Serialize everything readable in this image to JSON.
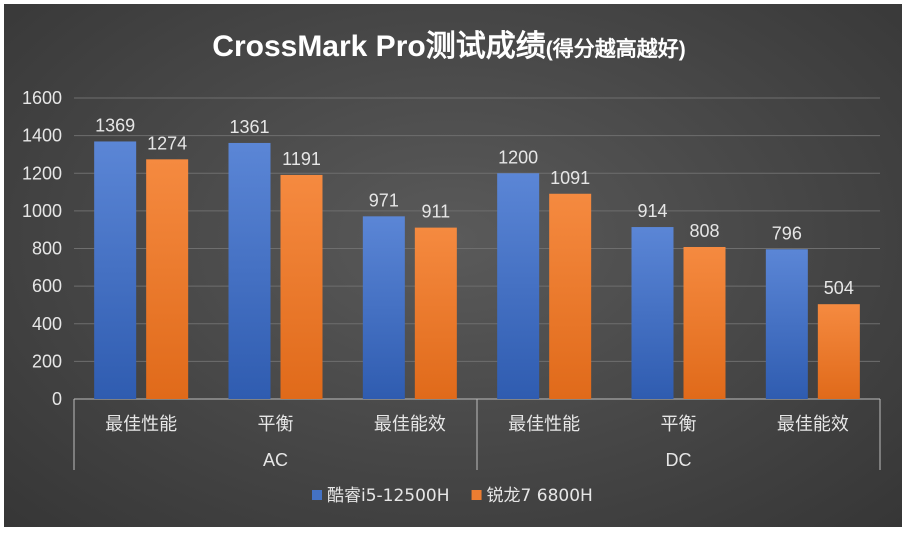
{
  "chart_data": {
    "type": "bar",
    "title": "CrossMark Pro测试成绩",
    "subtitle": "(得分越高越好)",
    "xlabel": "",
    "ylabel": "",
    "ylim": [
      0,
      1600
    ],
    "yticks": [
      0,
      200,
      400,
      600,
      800,
      1000,
      1200,
      1400,
      1600
    ],
    "grid": true,
    "legend_position": "bottom",
    "groups": [
      {
        "label": "AC",
        "categories": [
          "最佳性能",
          "平衡",
          "最佳能效"
        ]
      },
      {
        "label": "DC",
        "categories": [
          "最佳性能",
          "平衡",
          "最佳能效"
        ]
      }
    ],
    "series": [
      {
        "name": "酷睿i5-12500H",
        "color": "#4472c4",
        "values": [
          1369,
          1361,
          971,
          1200,
          914,
          796
        ]
      },
      {
        "name": "锐龙7 6800H",
        "color": "#ed7d31",
        "values": [
          1274,
          1191,
          911,
          1091,
          808,
          504
        ]
      }
    ]
  }
}
